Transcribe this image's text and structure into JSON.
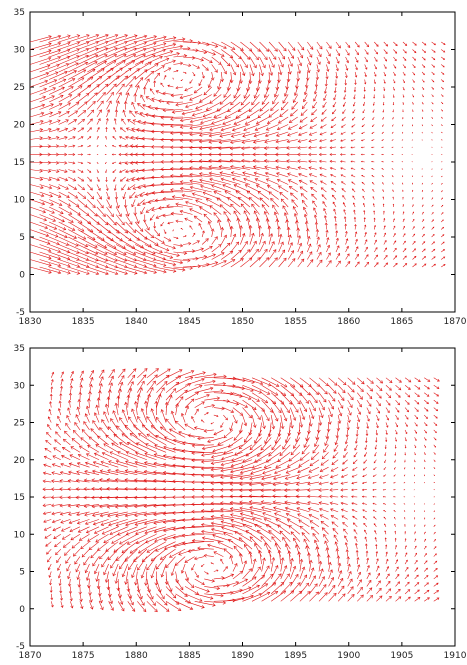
{
  "chart_data": [
    {
      "type": "quiver",
      "title": "",
      "xlabel": "",
      "ylabel": "",
      "xlim": [
        1830,
        1870
      ],
      "ylim": [
        -5,
        35
      ],
      "xticks": [
        1830,
        1835,
        1840,
        1845,
        1850,
        1855,
        1860,
        1865,
        1870
      ],
      "yticks": [
        -5,
        0,
        5,
        10,
        15,
        20,
        25,
        30,
        35
      ],
      "grid": false,
      "arrow_color": "#e01818",
      "grid_x": {
        "start": 1830,
        "stop": 1869,
        "step": 0.9
      },
      "grid_y": {
        "start": 1,
        "stop": 31,
        "step": 1
      },
      "vortex_pair": {
        "upper_center": [
          1844,
          26
        ],
        "lower_center": [
          1844,
          6
        ],
        "core_radius": 6.5,
        "front_x": 1841.5
      },
      "freestream": {
        "inflow_magnitude": 1.8,
        "wake_magnitude": 0.45
      }
    },
    {
      "type": "quiver",
      "title": "",
      "xlabel": "",
      "ylabel": "",
      "xlim": [
        1870,
        1910
      ],
      "ylim": [
        -5,
        35
      ],
      "xticks": [
        1870,
        1875,
        1880,
        1885,
        1890,
        1895,
        1900,
        1905,
        1910
      ],
      "yticks": [
        -5,
        0,
        5,
        10,
        15,
        20,
        25,
        30,
        35
      ],
      "grid": false,
      "arrow_color": "#e01818",
      "grid_x": {
        "start": 1872,
        "stop": 1908,
        "step": 0.9
      },
      "grid_y": {
        "start": 1,
        "stop": 31,
        "step": 1
      },
      "vortex_pair": {
        "upper_center": [
          1887,
          25
        ],
        "lower_center": [
          1887,
          6
        ],
        "core_radius": 5.5,
        "front_x": 1883
      },
      "freestream": {
        "inflow_magnitude": 0.25,
        "wake_magnitude": 0.55
      }
    }
  ]
}
